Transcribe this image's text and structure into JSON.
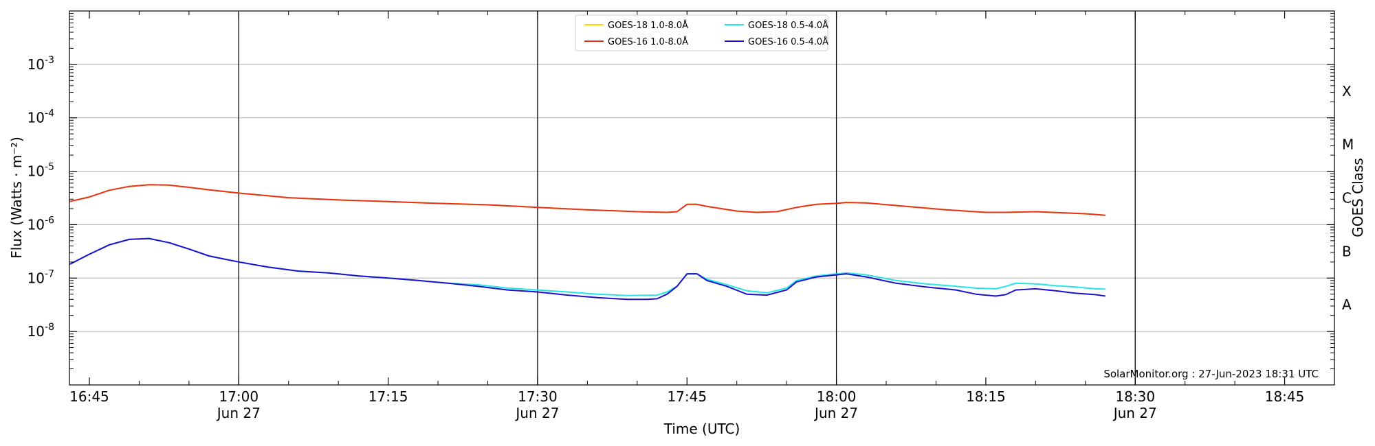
{
  "chart_data": {
    "type": "line",
    "xlabel": "Time (UTC)",
    "ylabel": "Flux (Watts · m⁻²)",
    "ylabel_right": "GOES Class",
    "y_scale": "log",
    "grid": "horizontal",
    "legend_position": "top-center",
    "credit": "SolarMonitor.org : 27-Jun-2023 18:31 UTC",
    "date_label": "Jun 27",
    "xlim": [
      "16:43",
      "18:50"
    ],
    "ylim": [
      1e-09,
      0.01
    ],
    "y_ticks": [
      {
        "exp": "-3",
        "value": 0.001
      },
      {
        "exp": "-4",
        "value": 0.0001
      },
      {
        "exp": "-5",
        "value": 1e-05
      },
      {
        "exp": "-6",
        "value": 1e-06
      },
      {
        "exp": "-7",
        "value": 1e-07
      },
      {
        "exp": "-8",
        "value": 1e-08
      }
    ],
    "x_ticks": [
      {
        "label": "16:45",
        "time": "16:45",
        "date": false
      },
      {
        "label": "17:00",
        "time": "17:00",
        "date": true
      },
      {
        "label": "17:15",
        "time": "17:15",
        "date": false
      },
      {
        "label": "17:30",
        "time": "17:30",
        "date": true
      },
      {
        "label": "17:45",
        "time": "17:45",
        "date": false
      },
      {
        "label": "18:00",
        "time": "18:00",
        "date": true
      },
      {
        "label": "18:15",
        "time": "18:15",
        "date": false
      },
      {
        "label": "18:30",
        "time": "18:30",
        "date": true
      },
      {
        "label": "18:45",
        "time": "18:45",
        "date": false
      }
    ],
    "vlines": [
      "17:00",
      "17:30",
      "18:00",
      "18:30"
    ],
    "classes": [
      {
        "label": "X",
        "value": 0.0001
      },
      {
        "label": "M",
        "value": 1e-05
      },
      {
        "label": "C",
        "value": 1e-06
      },
      {
        "label": "B",
        "value": 1e-07
      },
      {
        "label": "A",
        "value": 1e-08
      }
    ],
    "series": [
      {
        "name": "GOES-18 1.0-8.0Å",
        "color": "#ffd700",
        "x": [
          "16:43",
          "16:45",
          "16:47",
          "16:49",
          "16:51",
          "16:53",
          "16:55",
          "16:57",
          "17:00",
          "17:05",
          "17:10",
          "17:15",
          "17:20",
          "17:25",
          "17:30",
          "17:35",
          "17:40",
          "17:43",
          "17:44",
          "17:45",
          "17:46",
          "17:47",
          "17:50",
          "17:52",
          "17:54",
          "17:56",
          "17:58",
          "18:00",
          "18:01",
          "18:03",
          "18:07",
          "18:11",
          "18:15",
          "18:17",
          "18:20",
          "18:25",
          "18:27"
        ],
        "y": [
          2.7e-06,
          3.3e-06,
          4.4e-06,
          5.2e-06,
          5.6e-06,
          5.5e-06,
          5e-06,
          4.5e-06,
          3.9e-06,
          3.2e-06,
          2.9e-06,
          2.7e-06,
          2.5e-06,
          2.35e-06,
          2.1e-06,
          1.9e-06,
          1.75e-06,
          1.7e-06,
          1.75e-06,
          2.4e-06,
          2.4e-06,
          2.2e-06,
          1.8e-06,
          1.7e-06,
          1.75e-06,
          2.1e-06,
          2.4e-06,
          2.5e-06,
          2.6e-06,
          2.55e-06,
          2.2e-06,
          1.9e-06,
          1.7e-06,
          1.7e-06,
          1.75e-06,
          1.6e-06,
          1.5e-06
        ]
      },
      {
        "name": "GOES-16 1.0-8.0Å",
        "color": "#e8301a",
        "x": [
          "16:43",
          "16:45",
          "16:47",
          "16:49",
          "16:51",
          "16:53",
          "16:55",
          "16:57",
          "17:00",
          "17:05",
          "17:10",
          "17:15",
          "17:20",
          "17:25",
          "17:30",
          "17:35",
          "17:40",
          "17:43",
          "17:44",
          "17:45",
          "17:46",
          "17:47",
          "17:50",
          "17:52",
          "17:54",
          "17:56",
          "17:58",
          "18:00",
          "18:01",
          "18:03",
          "18:07",
          "18:11",
          "18:15",
          "18:17",
          "18:20",
          "18:25",
          "18:27"
        ],
        "y": [
          2.7e-06,
          3.3e-06,
          4.4e-06,
          5.2e-06,
          5.6e-06,
          5.5e-06,
          5e-06,
          4.5e-06,
          3.9e-06,
          3.2e-06,
          2.9e-06,
          2.7e-06,
          2.5e-06,
          2.35e-06,
          2.1e-06,
          1.9e-06,
          1.75e-06,
          1.7e-06,
          1.75e-06,
          2.4e-06,
          2.4e-06,
          2.2e-06,
          1.8e-06,
          1.7e-06,
          1.75e-06,
          2.1e-06,
          2.4e-06,
          2.5e-06,
          2.6e-06,
          2.55e-06,
          2.2e-06,
          1.9e-06,
          1.7e-06,
          1.7e-06,
          1.75e-06,
          1.6e-06,
          1.5e-06
        ]
      },
      {
        "name": "GOES-18 0.5-4.0Å",
        "color": "#22e5e5",
        "x": [
          "16:43",
          "16:45",
          "16:47",
          "16:49",
          "16:51",
          "16:53",
          "16:55",
          "16:57",
          "17:00",
          "17:03",
          "17:06",
          "17:09",
          "17:12",
          "17:15",
          "17:18",
          "17:21",
          "17:24",
          "17:27",
          "17:30",
          "17:33",
          "17:36",
          "17:39",
          "17:42",
          "17:43",
          "17:44",
          "17:45",
          "17:46",
          "17:47",
          "17:49",
          "17:51",
          "17:53",
          "17:55",
          "17:56",
          "17:58",
          "18:00",
          "18:01",
          "18:03",
          "18:06",
          "18:09",
          "18:12",
          "18:14",
          "18:16",
          "18:17",
          "18:18",
          "18:20",
          "18:22",
          "18:24",
          "18:26",
          "18:27"
        ],
        "y": [
          1.8e-07,
          2.8e-07,
          4.2e-07,
          5.3e-07,
          5.5e-07,
          4.6e-07,
          3.5e-07,
          2.6e-07,
          2e-07,
          1.6e-07,
          1.35e-07,
          1.25e-07,
          1.1e-07,
          1e-07,
          9e-08,
          8e-08,
          7.5e-08,
          6.5e-08,
          6e-08,
          5.5e-08,
          5e-08,
          4.7e-08,
          4.8e-08,
          5.5e-08,
          7e-08,
          1.2e-07,
          1.2e-07,
          9.5e-08,
          7.5e-08,
          5.8e-08,
          5.3e-08,
          6.5e-08,
          9e-08,
          1.1e-07,
          1.2e-07,
          1.25e-07,
          1.15e-07,
          9e-08,
          7.8e-08,
          7e-08,
          6.5e-08,
          6.3e-08,
          7e-08,
          8e-08,
          7.8e-08,
          7.2e-08,
          6.8e-08,
          6.3e-08,
          6.2e-08
        ]
      },
      {
        "name": "GOES-16 0.5-4.0Å",
        "color": "#1c10d0",
        "x": [
          "16:43",
          "16:45",
          "16:47",
          "16:49",
          "16:51",
          "16:53",
          "16:55",
          "16:57",
          "17:00",
          "17:03",
          "17:06",
          "17:09",
          "17:12",
          "17:15",
          "17:18",
          "17:21",
          "17:24",
          "17:27",
          "17:30",
          "17:33",
          "17:36",
          "17:39",
          "17:41",
          "17:42",
          "17:43",
          "17:44",
          "17:45",
          "17:46",
          "17:47",
          "17:49",
          "17:51",
          "17:53",
          "17:55",
          "17:56",
          "17:58",
          "18:00",
          "18:01",
          "18:03",
          "18:06",
          "18:09",
          "18:12",
          "18:14",
          "18:16",
          "18:17",
          "18:18",
          "18:20",
          "18:22",
          "18:24",
          "18:26",
          "18:27"
        ],
        "y": [
          1.8e-07,
          2.8e-07,
          4.2e-07,
          5.3e-07,
          5.5e-07,
          4.6e-07,
          3.5e-07,
          2.6e-07,
          2e-07,
          1.6e-07,
          1.35e-07,
          1.25e-07,
          1.1e-07,
          1e-07,
          9e-08,
          8e-08,
          7e-08,
          6e-08,
          5.5e-08,
          4.8e-08,
          4.3e-08,
          4e-08,
          4e-08,
          4.1e-08,
          5e-08,
          7e-08,
          1.2e-07,
          1.2e-07,
          9e-08,
          7e-08,
          5e-08,
          4.8e-08,
          6e-08,
          8.5e-08,
          1.05e-07,
          1.15e-07,
          1.2e-07,
          1.05e-07,
          8e-08,
          6.8e-08,
          6e-08,
          5e-08,
          4.6e-08,
          4.9e-08,
          6e-08,
          6.3e-08,
          5.8e-08,
          5.2e-08,
          4.9e-08,
          4.6e-08
        ]
      }
    ]
  }
}
